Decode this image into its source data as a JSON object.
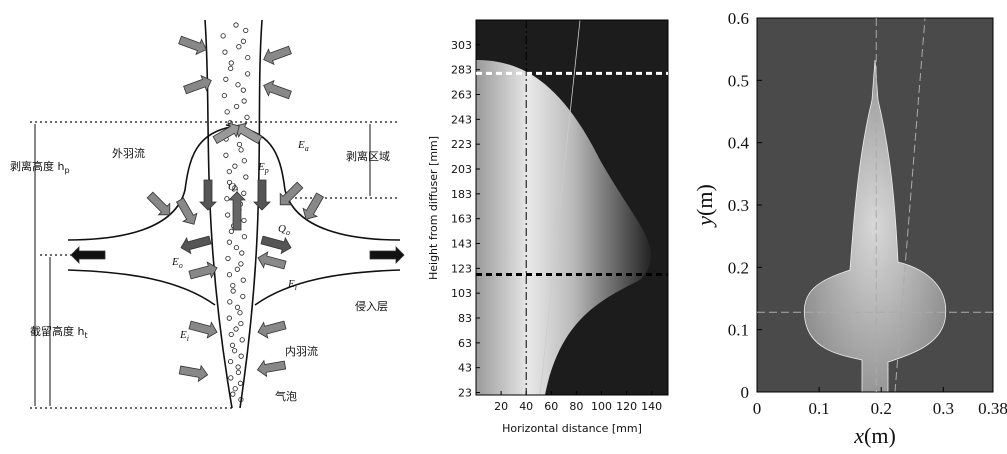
{
  "diagram": {
    "labels": {
      "peel_height": {
        "main": "剥离高度 h",
        "sub": "p"
      },
      "trap_height": {
        "main": "截留高度 h",
        "sub": "t"
      },
      "outer_plume": "外羽流",
      "peel_zone": "剥离区域",
      "intrusion": "侵入层",
      "inner_plume": "内羽流",
      "bubble": "气泡",
      "qi": {
        "main": "Q",
        "sub": "i"
      },
      "qo": {
        "main": "Q",
        "sub": "o"
      },
      "ea": {
        "main": "E",
        "sub": "a"
      },
      "ep": {
        "main": "E",
        "sub": "p"
      },
      "eo": {
        "main": "E",
        "sub": "o"
      },
      "ei_right": {
        "main": "E",
        "sub": "i"
      },
      "ei_left": {
        "main": "E",
        "sub": "i"
      }
    }
  },
  "plot1": {
    "y_label": "Height from diffuser [mm]",
    "x_label": "Horizontal distance [mm]",
    "xlim": [
      0,
      153
    ],
    "ylim": [
      21,
      323
    ],
    "xticks": [
      20,
      40,
      60,
      80,
      100,
      120,
      140
    ],
    "yticks": [
      23,
      43,
      63,
      83,
      103,
      123,
      143,
      163,
      183,
      203,
      223,
      243,
      263,
      283,
      303
    ],
    "dashed_lines": [
      280,
      118
    ],
    "center_line": 40
  },
  "plot2": {
    "x_label": {
      "symbol": "x",
      "unit": "(m)"
    },
    "y_label": {
      "symbol": "y",
      "unit": "(m)"
    },
    "xlim": [
      0,
      0.38
    ],
    "ylim": [
      0,
      0.6
    ],
    "xticks": [
      0,
      0.1,
      0.2,
      0.3,
      0.38
    ],
    "yticks": [
      0,
      0.1,
      0.2,
      0.3,
      0.4,
      0.5,
      0.6
    ],
    "h_line": 0.128,
    "v_line": 0.192
  }
}
